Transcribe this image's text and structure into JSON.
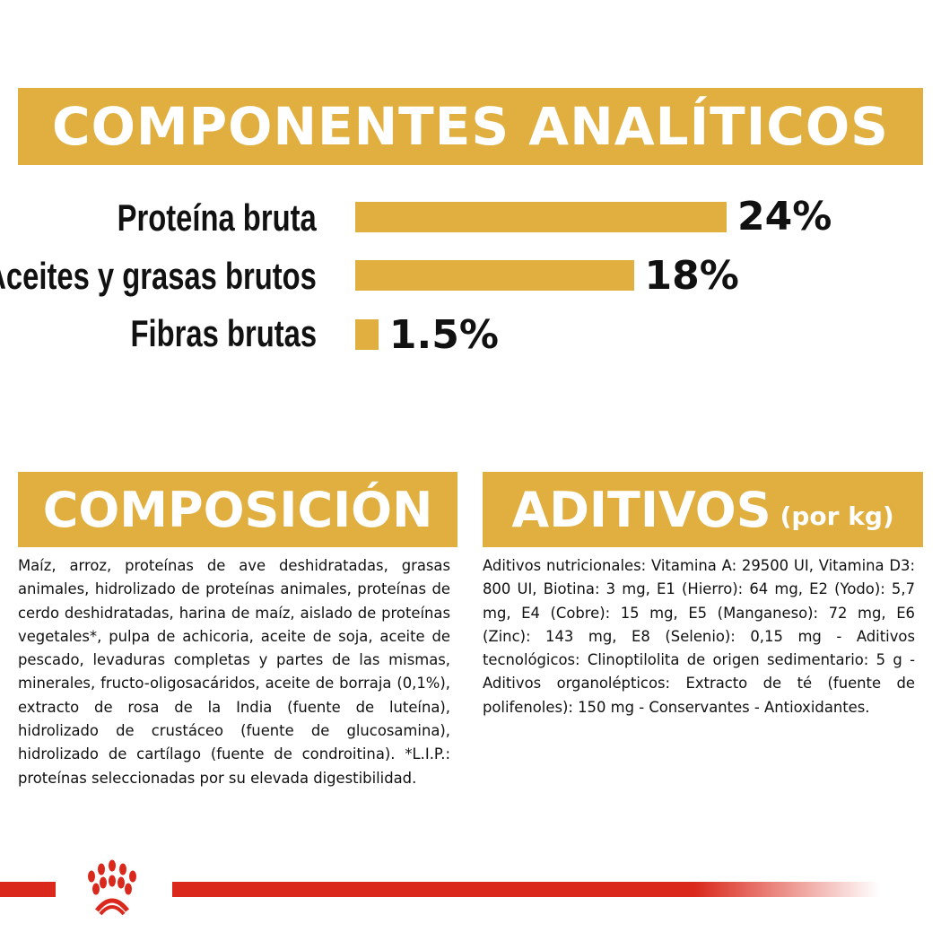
{
  "analytical": {
    "title": "COMPONENTES ANALÍTICOS",
    "rows": [
      {
        "label": "Proteína bruta",
        "value": "24%",
        "percent": 24
      },
      {
        "label": "Aceites y grasas brutos",
        "value": "18%",
        "percent": 18
      },
      {
        "label": "Fibras brutas",
        "value": "1.5%",
        "percent": 1.5
      }
    ]
  },
  "chart_data": {
    "type": "bar",
    "orientation": "horizontal",
    "categories": [
      "Proteína bruta",
      "Aceites y grasas brutos",
      "Fibras brutas"
    ],
    "values": [
      24,
      18,
      1.5
    ],
    "data_labels": [
      "24%",
      "18%",
      "1.5%"
    ],
    "color": "#E0AF3F"
  },
  "composition": {
    "title": "COMPOSICIÓN",
    "text": "Maíz, arroz, proteínas de ave deshidratadas, grasas animales, hidrolizado de proteínas animales, proteínas de cerdo deshidratadas, harina de maíz, aislado de proteínas vegetales*, pulpa de achicoria, aceite de soja, aceite de pescado, levaduras completas y partes de las mismas, minerales, fructo-oligosacáridos, aceite de borraja (0,1%), extracto de rosa de la India (fuente de luteína), hidrolizado de crustáceo (fuente de glucosamina), hidrolizado de cartílago (fuente de condroitina). *L.I.P.: proteínas seleccionadas por su elevada digestibilidad."
  },
  "additives": {
    "title": "ADITIVOS",
    "subtitle": "(por kg)",
    "text": "Aditivos nutricionales: Vitamina A: 29500 UI, Vitamina D3: 800 UI, Biotina: 3 mg, E1 (Hierro): 64 mg, E2 (Yodo): 5,7 mg, E4 (Cobre): 15 mg, E5 (Manganeso): 72 mg, E6 (Zinc): 143 mg, E8 (Selenio): 0,15 mg - Aditivos tecnológicos: Clinoptilolita de origen sedimentario: 5 g - Aditivos organolépticos: Extracto de té (fuente de polifenoles): 150 mg - Conservantes - Antioxidantes."
  },
  "colors": {
    "accent": "#E0AF3F",
    "brand_red": "#DA291C"
  },
  "footer": {
    "logo_icon": "royal-canin-crown-logo"
  }
}
